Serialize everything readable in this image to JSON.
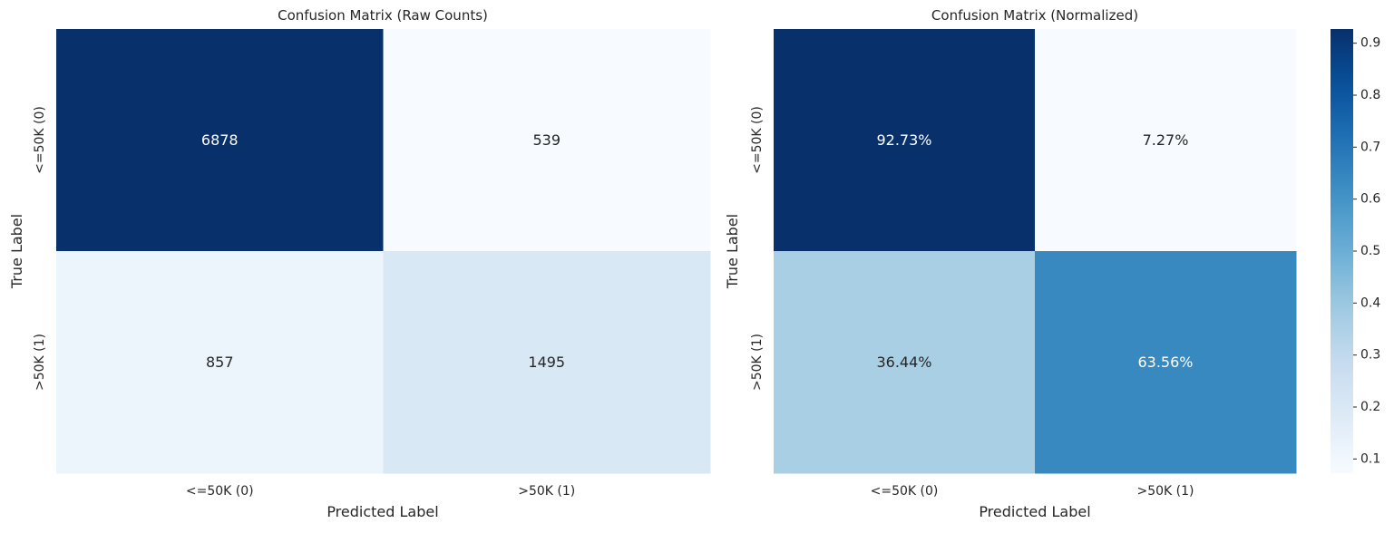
{
  "colors": {
    "colormap": "Blues",
    "cmap_stops": [
      "#f7fbff",
      "#deebf7",
      "#c6dbef",
      "#9ecae1",
      "#6baed6",
      "#4292c6",
      "#2171b5",
      "#08519c",
      "#08306b"
    ],
    "text_dark": "#262626",
    "text_light": "#ffffff"
  },
  "chart_data": [
    {
      "type": "heatmap",
      "title": "Confusion Matrix (Raw Counts)",
      "xlabel": "Predicted Label",
      "ylabel": "True Label",
      "x_categories": [
        "<=50K (0)",
        ">50K (1)"
      ],
      "y_categories": [
        "<=50K (0)",
        ">50K (1)"
      ],
      "values": [
        [
          6878,
          539
        ],
        [
          857,
          1495
        ]
      ],
      "annotations": [
        [
          "6878",
          "539"
        ],
        [
          "857",
          "1495"
        ]
      ],
      "vmin": 539,
      "vmax": 6878,
      "colorbar": false
    },
    {
      "type": "heatmap",
      "title": "Confusion Matrix (Normalized)",
      "xlabel": "Predicted Label",
      "ylabel": "True Label",
      "x_categories": [
        "<=50K (0)",
        ">50K (1)"
      ],
      "y_categories": [
        "<=50K (0)",
        ">50K (1)"
      ],
      "values": [
        [
          0.9273,
          0.0727
        ],
        [
          0.3644,
          0.6356
        ]
      ],
      "annotations": [
        [
          "92.73%",
          "7.27%"
        ],
        [
          "36.44%",
          "63.56%"
        ]
      ],
      "vmin": 0.0727,
      "vmax": 0.9273,
      "colorbar": true,
      "colorbar_ticks": [
        "0.1",
        "0.2",
        "0.3",
        "0.4",
        "0.5",
        "0.6",
        "0.7",
        "0.8",
        "0.9"
      ]
    }
  ]
}
